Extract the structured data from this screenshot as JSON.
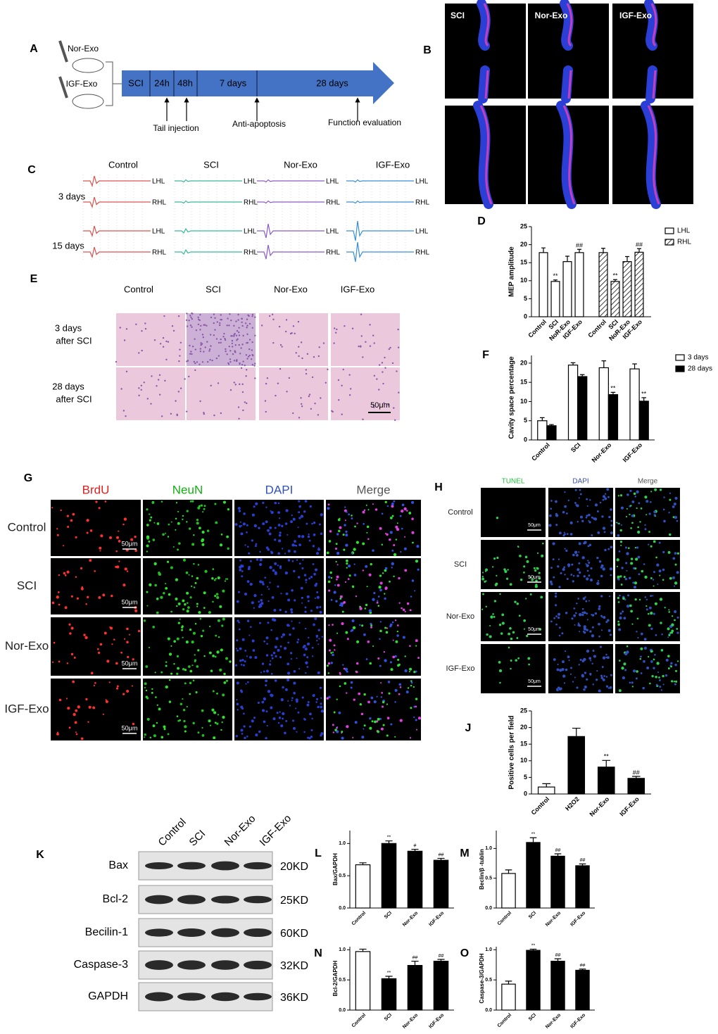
{
  "panel_labels": [
    "A",
    "B",
    "C",
    "D",
    "E",
    "F",
    "G",
    "H",
    "J",
    "K",
    "L",
    "M",
    "N",
    "O"
  ],
  "timeline": {
    "groups": [
      "Nor-Exo",
      "IGF-Exo"
    ],
    "stages": [
      "SCI",
      "24h",
      "48h",
      "7 days",
      "28 days"
    ],
    "events": [
      "Tail injection",
      "Anti-apoptosis",
      "Function evaluation"
    ]
  },
  "tractography": {
    "groups": [
      "SCI",
      "Nor-Exo",
      "IGF-Exo"
    ]
  },
  "mep_traces": {
    "groups": [
      "Control",
      "SCI",
      "Nor-Exo",
      "IGF-Exo"
    ],
    "times": [
      "3 days",
      "15 days"
    ],
    "limbs": [
      "LHL",
      "RHL"
    ]
  },
  "histology": {
    "groups": [
      "Control",
      "SCI",
      "Nor-Exo",
      "IGF-Exo"
    ],
    "times": [
      [
        "3 days",
        "after SCI"
      ],
      [
        "28 days",
        "after SCI"
      ]
    ],
    "scale": "50μm"
  },
  "brdu": {
    "channels": [
      "BrdU",
      "NeuN",
      "DAPI",
      "Merge"
    ],
    "groups": [
      "Control",
      "SCI",
      "Nor-Exo",
      "IGF-Exo"
    ],
    "scale": "50μm"
  },
  "tunel": {
    "channels": [
      "TUNEL",
      "DAPI",
      "Merge"
    ],
    "groups": [
      "Control",
      "SCI",
      "Nor-Exo",
      "IGF-Exo"
    ],
    "scale": "50μm"
  },
  "western": {
    "lanes": [
      "Control",
      "SCI",
      "Nor-Exo",
      "IGF-Exo"
    ],
    "proteins": [
      "Bax",
      "Bcl-2",
      "Becilin-1",
      "Caspase-3",
      "GAPDH"
    ],
    "sizes": [
      "20KD",
      "25KD",
      "60KD",
      "32KD",
      "36KD"
    ]
  },
  "chart_data": [
    {
      "type": "bar",
      "ylabel": "MEP amplitude",
      "categories": [
        "Control",
        "SCI",
        "NoR-Exo",
        "IGF-Exo"
      ],
      "series": [
        {
          "name": "LHL",
          "color": "#ffffff",
          "values": [
            17.8,
            9.8,
            15.3,
            17.8
          ],
          "errors": [
            1.3,
            0.4,
            1.5,
            0.9
          ],
          "annotations": [
            null,
            "**",
            null,
            "##"
          ]
        },
        {
          "name": "RHL",
          "color": "#ffffff",
          "pattern": "hatch",
          "values": [
            17.8,
            9.8,
            15.3,
            17.9
          ],
          "errors": [
            1.2,
            0.5,
            1.4,
            1.0
          ],
          "annotations": [
            null,
            "**",
            null,
            "##"
          ]
        }
      ],
      "ylim": [
        0,
        25
      ],
      "yticks": [
        0,
        5,
        10,
        15,
        20,
        25
      ]
    },
    {
      "type": "bar",
      "ylabel": "Cavity space percentage",
      "categories": [
        "Control",
        "SCI",
        "Nor-Exo",
        "IGF-Exo"
      ],
      "series": [
        {
          "name": "3 days",
          "color": "#ffffff",
          "values": [
            5,
            19.5,
            18.8,
            18.5
          ],
          "errors": [
            0.8,
            0.6,
            1.8,
            1.3
          ]
        },
        {
          "name": "28 days",
          "color": "#000000",
          "values": [
            3.7,
            16.5,
            11.8,
            10.1
          ],
          "errors": [
            0.3,
            0.5,
            0.6,
            0.9
          ],
          "annotations": [
            null,
            null,
            "**",
            "**"
          ]
        }
      ],
      "ylim": [
        0,
        22
      ],
      "yticks": [
        0,
        5,
        10,
        15,
        20
      ]
    },
    {
      "type": "bar",
      "ylabel": "Positive cells per field",
      "categories": [
        "Control",
        "H2O2",
        "Nor-Exo",
        "IGF-Exo"
      ],
      "values": [
        2.1,
        17.3,
        8.1,
        4.7
      ],
      "errors": [
        1,
        2.5,
        2,
        0.6
      ],
      "annotations": [
        null,
        null,
        "**",
        "##"
      ],
      "colors": [
        "#ffffff",
        "#000000",
        "#000000",
        "#000000"
      ],
      "ylim": [
        0,
        25
      ],
      "yticks": [
        0,
        5,
        10,
        15,
        20,
        25
      ]
    },
    {
      "type": "bar",
      "ylabel": "Bax/GAPDH",
      "categories": [
        "Control",
        "SCI",
        "Nor-Exo",
        "IGF-Exo"
      ],
      "values": [
        0.67,
        1.0,
        0.88,
        0.74
      ],
      "errors": [
        0.03,
        0.04,
        0.03,
        0.03
      ],
      "annotations": [
        null,
        "**",
        "#",
        "##"
      ],
      "colors": [
        "#ffffff",
        "#000000",
        "#000000",
        "#000000"
      ],
      "ylim": [
        0,
        1.2
      ],
      "yticks": [
        {
          "value": 0,
          "label": "0.0"
        },
        {
          "value": 0.5,
          "label": "0.5"
        },
        {
          "value": 1,
          "label": "1.0"
        }
      ]
    },
    {
      "type": "bar",
      "ylabel": "Beclin/β -tublin",
      "categories": [
        "Control",
        "SCI",
        "Nor-Exo",
        "IGF-Exo"
      ],
      "values": [
        0.58,
        1.1,
        0.87,
        0.71
      ],
      "errors": [
        0.06,
        0.08,
        0.04,
        0.03
      ],
      "annotations": [
        null,
        "**",
        "##",
        "##"
      ],
      "colors": [
        "#ffffff",
        "#000000",
        "#000000",
        "#000000"
      ],
      "ylim": [
        0,
        1.3
      ],
      "yticks": [
        {
          "value": 0,
          "label": "0.0"
        },
        {
          "value": 0.5,
          "label": "0.5"
        },
        {
          "value": 1,
          "label": "1.0"
        }
      ]
    },
    {
      "type": "bar",
      "ylabel": "Bcl-2/GAPDH",
      "categories": [
        "Control",
        "SCI",
        "Nor-Exo",
        "IGF-Exo"
      ],
      "values": [
        0.97,
        0.52,
        0.74,
        0.81
      ],
      "errors": [
        0.04,
        0.04,
        0.07,
        0.03
      ],
      "annotations": [
        null,
        "**",
        "##",
        "##"
      ],
      "colors": [
        "#ffffff",
        "#000000",
        "#000000",
        "#000000"
      ],
      "ylim": [
        0,
        1.05
      ],
      "yticks": [
        {
          "value": 0,
          "label": "0.0"
        },
        {
          "value": 0.5,
          "label": "0.5"
        },
        {
          "value": 1,
          "label": "1.0"
        }
      ]
    },
    {
      "type": "bar",
      "ylabel": "Caspase-3/GAPDH",
      "categories": [
        "Control",
        "SCI",
        "Nor-Exo",
        "IGF-Exo"
      ],
      "values": [
        0.43,
        0.99,
        0.81,
        0.66
      ],
      "errors": [
        0.05,
        0.02,
        0.04,
        0.02
      ],
      "annotations": [
        null,
        "**",
        "##",
        "##"
      ],
      "colors": [
        "#ffffff",
        "#000000",
        "#000000",
        "#000000"
      ],
      "ylim": [
        0,
        1.05
      ],
      "yticks": [
        {
          "value": 0,
          "label": "0.0"
        },
        {
          "value": 0.5,
          "label": "0.5"
        },
        {
          "value": 1,
          "label": "1.0"
        }
      ]
    }
  ]
}
